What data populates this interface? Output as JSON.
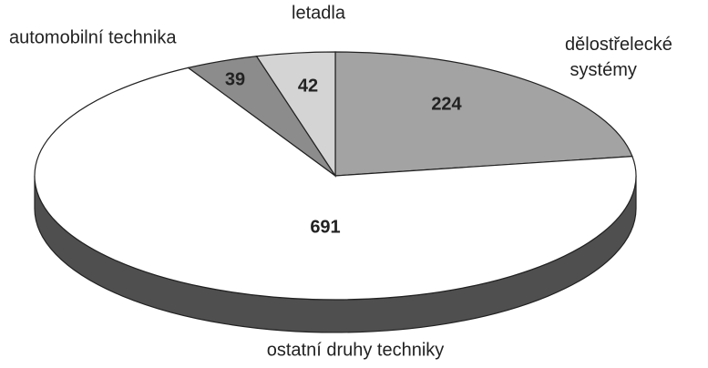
{
  "chart_data": {
    "type": "pie",
    "categories": [
      "dělostřelecké systémy",
      "ostatní druhy techniky",
      "automobilní technika",
      "letadla"
    ],
    "values": [
      224,
      691,
      39,
      42
    ],
    "colors": [
      "#a3a3a3",
      "#ffffff",
      "#8c8c8c",
      "#d4d4d4"
    ],
    "side_color": "#4f4f4f",
    "start": "top",
    "direction": "clockwise"
  }
}
